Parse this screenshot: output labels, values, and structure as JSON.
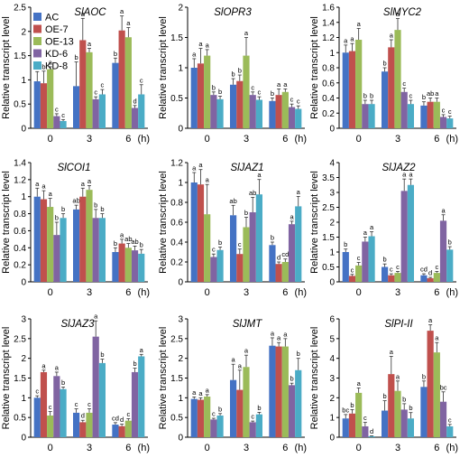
{
  "figure": {
    "legend": [
      "AC",
      "OE-7",
      "OE-13",
      "KD-6",
      "KD-8"
    ],
    "colors": [
      "#4472c4",
      "#c0504d",
      "#9bbb59",
      "#8064a2",
      "#4bacc6"
    ],
    "x_unit": "(h)"
  },
  "chart_data": [
    {
      "type": "bar",
      "title": "SlAOC",
      "ylabel": "Relative transcript level",
      "categories": [
        "0",
        "3",
        "6"
      ],
      "ylim": [
        0,
        2.5
      ],
      "yticks": [
        "0",
        "0.5",
        "1",
        "1.5",
        "2",
        "2.5"
      ],
      "series": [
        {
          "name": "AC",
          "values": [
            0.97,
            0.87,
            1.35
          ],
          "errors": [
            0.2,
            0.5,
            0.1
          ],
          "letters": [
            "ab",
            "b",
            "b"
          ]
        },
        {
          "name": "OE-7",
          "values": [
            0.93,
            1.82,
            2.02
          ],
          "errors": [
            0.25,
            0.45,
            0.3
          ],
          "letters": [
            "b",
            "a",
            "a"
          ]
        },
        {
          "name": "OE-13",
          "values": [
            1.22,
            1.57,
            1.88
          ],
          "errors": [
            0.05,
            0.08,
            0.2
          ],
          "letters": [
            "a",
            "a",
            "a"
          ]
        },
        {
          "name": "KD-6",
          "values": [
            0.25,
            0.6,
            0.42
          ],
          "errors": [
            0.05,
            0.05,
            0.05
          ],
          "letters": [
            "c",
            "c",
            "d"
          ]
        },
        {
          "name": "KD-8",
          "values": [
            0.15,
            0.7,
            0.7
          ],
          "errors": [
            0.03,
            0.1,
            0.2
          ],
          "letters": [
            "c",
            "c",
            "c"
          ]
        }
      ]
    },
    {
      "type": "bar",
      "title": "SlOPR3",
      "ylabel": "Relative transcript level",
      "categories": [
        "0",
        "3",
        "6"
      ],
      "ylim": [
        0,
        2
      ],
      "yticks": [
        "0",
        "0.5",
        "1",
        "1.5",
        "2"
      ],
      "series": [
        {
          "name": "AC",
          "values": [
            1.0,
            0.72,
            0.45
          ],
          "errors": [
            0.15,
            0.1,
            0.05
          ],
          "letters": [
            "a",
            "b",
            "b"
          ]
        },
        {
          "name": "OE-7",
          "values": [
            1.07,
            0.78,
            0.55
          ],
          "errors": [
            0.25,
            0.1,
            0.1
          ],
          "letters": [
            "a",
            "b",
            "a"
          ]
        },
        {
          "name": "OE-13",
          "values": [
            1.2,
            1.2,
            0.6
          ],
          "errors": [
            0.1,
            0.3,
            0.05
          ],
          "letters": [
            "a",
            "a",
            "a"
          ]
        },
        {
          "name": "KD-6",
          "values": [
            0.55,
            0.55,
            0.35
          ],
          "errors": [
            0.05,
            0.05,
            0.05
          ],
          "letters": [
            "b",
            "c",
            "c"
          ]
        },
        {
          "name": "KD-8",
          "values": [
            0.48,
            0.47,
            0.32
          ],
          "errors": [
            0.05,
            0.05,
            0.05
          ],
          "letters": [
            "b",
            "c",
            "c"
          ]
        }
      ]
    },
    {
      "type": "bar",
      "title": "SlMYC2",
      "ylabel": "Relative transcript level",
      "categories": [
        "0",
        "3",
        "6"
      ],
      "ylim": [
        0,
        1.6
      ],
      "yticks": [
        "0",
        "0.2",
        "0.4",
        "0.6",
        "0.8",
        "1",
        "1.2",
        "1.4",
        "1.6"
      ],
      "series": [
        {
          "name": "AC",
          "values": [
            1.0,
            0.75,
            0.3
          ],
          "errors": [
            0.1,
            0.05,
            0.05
          ],
          "letters": [
            "a",
            "b",
            "b"
          ]
        },
        {
          "name": "OE-7",
          "values": [
            1.02,
            1.07,
            0.35
          ],
          "errors": [
            0.1,
            0.1,
            0.05
          ],
          "letters": [
            "a",
            "a",
            "ab"
          ]
        },
        {
          "name": "OE-13",
          "values": [
            1.17,
            1.3,
            0.35
          ],
          "errors": [
            0.15,
            0.15,
            0.05
          ],
          "letters": [
            "a",
            "a",
            "a"
          ]
        },
        {
          "name": "KD-6",
          "values": [
            0.32,
            0.48,
            0.15
          ],
          "errors": [
            0.05,
            0.05,
            0.03
          ],
          "letters": [
            "b",
            "c",
            "c"
          ]
        },
        {
          "name": "KD-8",
          "values": [
            0.32,
            0.32,
            0.13
          ],
          "errors": [
            0.05,
            0.05,
            0.03
          ],
          "letters": [
            "b",
            "c",
            "c"
          ]
        }
      ]
    },
    {
      "type": "bar",
      "title": "SlCOI1",
      "ylabel": "Relative transcript level",
      "categories": [
        "0",
        "3",
        "6"
      ],
      "ylim": [
        0,
        1.4
      ],
      "yticks": [
        "0",
        "0.2",
        "0.4",
        "0.6",
        "0.8",
        "1",
        "1.2",
        "1.4"
      ],
      "series": [
        {
          "name": "AC",
          "values": [
            1.0,
            0.85,
            0.35
          ],
          "errors": [
            0.1,
            0.05,
            0.05
          ],
          "letters": [
            "a",
            "ab",
            "b"
          ]
        },
        {
          "name": "OE-7",
          "values": [
            0.97,
            1.0,
            0.45
          ],
          "errors": [
            0.1,
            0.1,
            0.05
          ],
          "letters": [
            "a",
            "a",
            "a"
          ]
        },
        {
          "name": "OE-13",
          "values": [
            0.88,
            1.08,
            0.4
          ],
          "errors": [
            0.1,
            0.05,
            0.05
          ],
          "letters": [
            "a",
            "a",
            "ab"
          ]
        },
        {
          "name": "KD-6",
          "values": [
            0.55,
            0.75,
            0.37
          ],
          "errors": [
            0.15,
            0.1,
            0.05
          ],
          "letters": [
            "b",
            "b",
            "ab"
          ]
        },
        {
          "name": "KD-8",
          "values": [
            0.75,
            0.75,
            0.33
          ],
          "errors": [
            0.05,
            0.05,
            0.05
          ],
          "letters": [
            "b",
            "b",
            "b"
          ]
        }
      ]
    },
    {
      "type": "bar",
      "title": "SlJAZ1",
      "ylabel": "Relative transcript level",
      "categories": [
        "0",
        "3",
        "6"
      ],
      "ylim": [
        0,
        1.2
      ],
      "yticks": [
        "0",
        "0.2",
        "0.4",
        "0.6",
        "0.8",
        "1",
        "1.2"
      ],
      "series": [
        {
          "name": "AC",
          "values": [
            1.0,
            0.67,
            0.37
          ],
          "errors": [
            0.1,
            0.1,
            0.03
          ],
          "letters": [
            "a",
            "ab",
            "b"
          ]
        },
        {
          "name": "OE-7",
          "values": [
            0.98,
            0.28,
            0.18
          ],
          "errors": [
            0.15,
            0.05,
            0.02
          ],
          "letters": [
            "a",
            "c",
            "d"
          ]
        },
        {
          "name": "OE-13",
          "values": [
            0.68,
            0.55,
            0.2
          ],
          "errors": [
            0.3,
            0.1,
            0.03
          ],
          "letters": [
            "a",
            "b",
            "cd"
          ]
        },
        {
          "name": "KD-6",
          "values": [
            0.25,
            0.7,
            0.58
          ],
          "errors": [
            0.03,
            0.15,
            0.03
          ],
          "letters": [
            "c",
            "ab",
            "a"
          ]
        },
        {
          "name": "KD-8",
          "values": [
            0.32,
            0.88,
            0.76
          ],
          "errors": [
            0.03,
            0.15,
            0.1
          ],
          "letters": [
            "b",
            "a",
            "a"
          ]
        }
      ]
    },
    {
      "type": "bar",
      "title": "SlJAZ2",
      "ylabel": "Relative transcript level",
      "categories": [
        "0",
        "3",
        "6"
      ],
      "ylim": [
        0,
        4
      ],
      "yticks": [
        "0",
        "0.5",
        "1",
        "1.5",
        "2",
        "2.5",
        "3",
        "3.5",
        "4"
      ],
      "series": [
        {
          "name": "AC",
          "values": [
            1.0,
            0.5,
            0.22
          ],
          "errors": [
            0.1,
            0.1,
            0.05
          ],
          "letters": [
            "b",
            "b",
            "cd"
          ]
        },
        {
          "name": "OE-7",
          "values": [
            0.2,
            0.22,
            0.12
          ],
          "errors": [
            0.05,
            0.05,
            0.03
          ],
          "letters": [
            "c",
            "c",
            "d"
          ]
        },
        {
          "name": "OE-13",
          "values": [
            0.55,
            0.3,
            0.3
          ],
          "errors": [
            0.1,
            0.05,
            0.05
          ],
          "letters": [
            "c",
            "c",
            "c"
          ]
        },
        {
          "name": "KD-6",
          "values": [
            1.35,
            3.05,
            2.05
          ],
          "errors": [
            0.15,
            0.4,
            0.2
          ],
          "letters": [
            "a",
            "a",
            "a"
          ]
        },
        {
          "name": "KD-8",
          "values": [
            1.53,
            3.25,
            1.08
          ],
          "errors": [
            0.15,
            0.2,
            0.1
          ],
          "letters": [
            "a",
            "a",
            "b"
          ]
        }
      ]
    },
    {
      "type": "bar",
      "title": "SlJAZ3",
      "ylabel": "Relative transcript level",
      "categories": [
        "0",
        "3",
        "6"
      ],
      "ylim": [
        0,
        3
      ],
      "yticks": [
        "0",
        "0.5",
        "1",
        "1.5",
        "2",
        "2.5",
        "3"
      ],
      "series": [
        {
          "name": "AC",
          "values": [
            1.0,
            0.62,
            0.32
          ],
          "errors": [
            0.05,
            0.1,
            0.05
          ],
          "letters": [
            "c",
            "c",
            "cd"
          ]
        },
        {
          "name": "OE-7",
          "values": [
            1.65,
            0.38,
            0.28
          ],
          "errors": [
            0.05,
            0.05,
            0.05
          ],
          "letters": [
            "a",
            "d",
            "d"
          ]
        },
        {
          "name": "OE-13",
          "values": [
            0.55,
            0.62,
            0.42
          ],
          "errors": [
            0.1,
            0.1,
            0.05
          ],
          "letters": [
            "c",
            "c",
            "c"
          ]
        },
        {
          "name": "KD-6",
          "values": [
            1.55,
            2.55,
            1.65
          ],
          "errors": [
            0.1,
            0.4,
            0.1
          ],
          "letters": [
            "a",
            "a",
            "b"
          ]
        },
        {
          "name": "KD-8",
          "values": [
            1.22,
            1.88,
            2.05
          ],
          "errors": [
            0.05,
            0.1,
            0.05
          ],
          "letters": [
            "b",
            "b",
            "a"
          ]
        }
      ]
    },
    {
      "type": "bar",
      "title": "SlJMT",
      "ylabel": "Relative transcript level",
      "categories": [
        "0",
        "3",
        "6"
      ],
      "ylim": [
        0,
        3
      ],
      "yticks": [
        "0",
        "0.5",
        "1",
        "1.5",
        "2",
        "2.5",
        "3"
      ],
      "series": [
        {
          "name": "AC",
          "values": [
            0.97,
            1.45,
            2.32
          ],
          "errors": [
            0.05,
            0.4,
            0.2
          ],
          "letters": [
            "a",
            "a",
            "a"
          ]
        },
        {
          "name": "OE-7",
          "values": [
            0.95,
            1.2,
            2.3
          ],
          "errors": [
            0.05,
            0.5,
            0.1
          ],
          "letters": [
            "a",
            "a",
            "a"
          ]
        },
        {
          "name": "OE-13",
          "values": [
            1.03,
            1.78,
            2.3
          ],
          "errors": [
            0.05,
            0.3,
            0.2
          ],
          "letters": [
            "a",
            "a",
            "a"
          ]
        },
        {
          "name": "KD-6",
          "values": [
            0.45,
            0.38,
            1.32
          ],
          "errors": [
            0.03,
            0.03,
            0.05
          ],
          "letters": [
            "c",
            "c",
            "b"
          ]
        },
        {
          "name": "KD-8",
          "values": [
            0.55,
            0.58,
            1.7
          ],
          "errors": [
            0.05,
            0.05,
            0.3
          ],
          "letters": [
            "b",
            "b",
            "b"
          ]
        }
      ]
    },
    {
      "type": "bar",
      "title": "SlPI-II",
      "ylabel": "Relative transcript level",
      "categories": [
        "0",
        "3",
        "6"
      ],
      "ylim": [
        0,
        6
      ],
      "yticks": [
        "0",
        "1",
        "2",
        "3",
        "4",
        "5",
        "6"
      ],
      "series": [
        {
          "name": "AC",
          "values": [
            0.95,
            1.35,
            2.55
          ],
          "errors": [
            0.2,
            0.5,
            0.3
          ],
          "letters": [
            "bc",
            "b",
            "b"
          ]
        },
        {
          "name": "OE-7",
          "values": [
            1.2,
            3.2,
            5.4
          ],
          "errors": [
            0.2,
            0.9,
            0.3
          ],
          "letters": [
            "b",
            "a",
            "a"
          ]
        },
        {
          "name": "OE-13",
          "values": [
            2.25,
            2.35,
            4.3
          ],
          "errors": [
            0.25,
            0.5,
            0.5
          ],
          "letters": [
            "a",
            "a",
            "a"
          ]
        },
        {
          "name": "KD-6",
          "values": [
            0.55,
            1.4,
            1.8
          ],
          "errors": [
            0.2,
            0.3,
            0.5
          ],
          "letters": [
            "c",
            "b",
            "bc"
          ]
        },
        {
          "name": "KD-8",
          "values": [
            0.05,
            0.95,
            0.55
          ],
          "errors": [
            0.02,
            0.3,
            0.1
          ],
          "letters": [
            "d",
            "b",
            "c"
          ]
        }
      ]
    }
  ]
}
